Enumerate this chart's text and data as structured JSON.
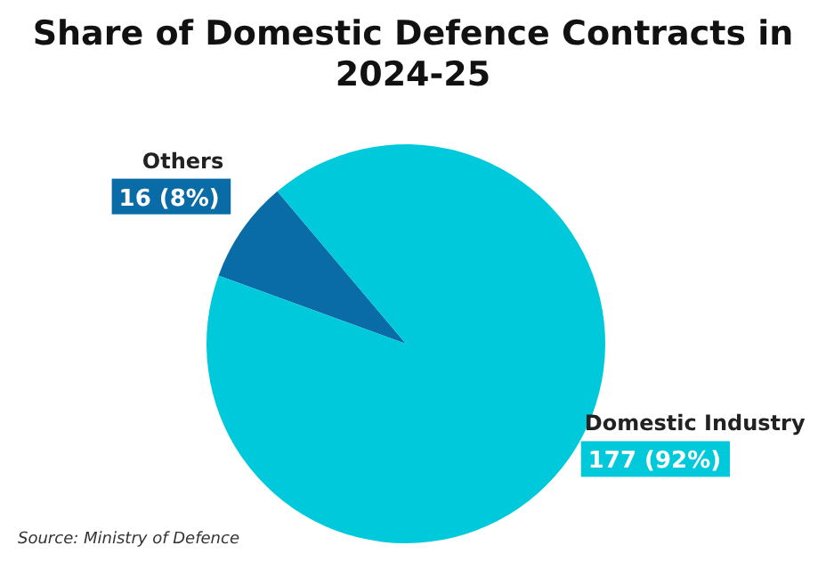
{
  "chart_data": {
    "type": "pie",
    "title": "Share of Domestic Defence Contracts in 2024-25",
    "categories": [
      "Others",
      "Domestic Industry"
    ],
    "values": [
      16,
      177
    ],
    "colors": [
      "#0a6ca6",
      "#00c9db"
    ],
    "value_labels": [
      "16 (8%)",
      "177 (92%)"
    ],
    "annotations": [
      "Source: Ministry of Defence"
    ]
  }
}
